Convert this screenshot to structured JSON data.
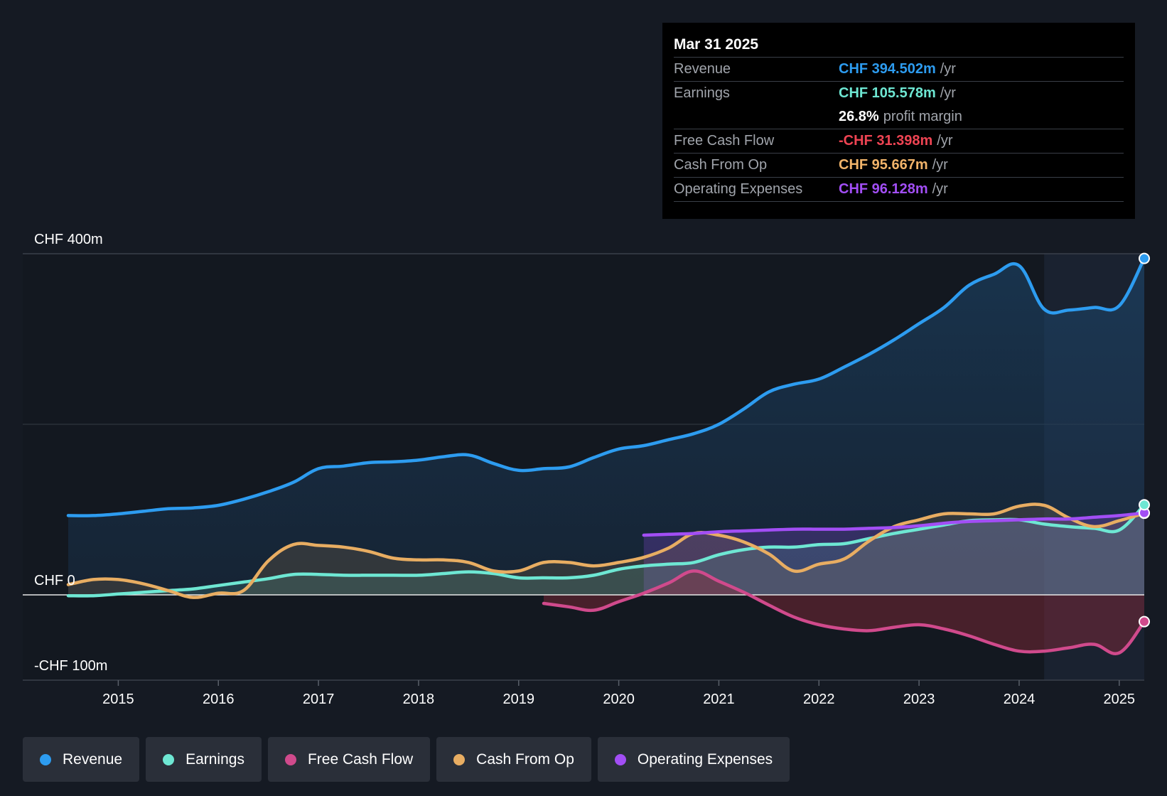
{
  "tooltip": {
    "date": "Mar 31 2025",
    "rows": [
      {
        "label": "Revenue",
        "value": "CHF 394.502m",
        "unit": "/yr",
        "color": "#2d9cf0"
      },
      {
        "label": "Earnings",
        "value": "CHF 105.578m",
        "unit": "/yr",
        "color": "#6ee7d3"
      },
      {
        "label": "",
        "value": "26.8%",
        "unit": "profit margin",
        "color": "#ffffff"
      },
      {
        "label": "Free Cash Flow",
        "value": "-CHF 31.398m",
        "unit": "/yr",
        "color": "#ef4453"
      },
      {
        "label": "Cash From Op",
        "value": "CHF 95.667m",
        "unit": "/yr",
        "color": "#f2b46a"
      },
      {
        "label": "Operating Expenses",
        "value": "CHF 96.128m",
        "unit": "/yr",
        "color": "#a24ef5"
      }
    ]
  },
  "legend": [
    {
      "label": "Revenue",
      "color": "#2d9cf0"
    },
    {
      "label": "Earnings",
      "color": "#6ee7d3"
    },
    {
      "label": "Free Cash Flow",
      "color": "#d04a8c"
    },
    {
      "label": "Cash From Op",
      "color": "#e8ad62"
    },
    {
      "label": "Operating Expenses",
      "color": "#a24ef5"
    }
  ],
  "chart_data": {
    "type": "line",
    "title": "",
    "xlabel": "",
    "ylabel": "",
    "ylim": [
      -100,
      400
    ],
    "xlim": [
      2014.5,
      2025.25
    ],
    "y_tick_labels": [
      {
        "value": 400,
        "label": "CHF 400m"
      },
      {
        "value": 0,
        "label": "CHF 0"
      },
      {
        "value": -100,
        "label": "-CHF 100m"
      }
    ],
    "x_ticks": [
      2015,
      2016,
      2017,
      2018,
      2019,
      2020,
      2021,
      2022,
      2023,
      2024,
      2025
    ],
    "x_tick_labels": [
      "2015",
      "2016",
      "2017",
      "2018",
      "2019",
      "2020",
      "2021",
      "2022",
      "2023",
      "2024",
      "2025"
    ],
    "highlight_start": 2024.25,
    "series": [
      {
        "name": "Revenue",
        "color": "#2d9cf0",
        "fill": true,
        "points": [
          [
            2014.5,
            93
          ],
          [
            2014.75,
            93
          ],
          [
            2015.0,
            95
          ],
          [
            2015.25,
            98
          ],
          [
            2015.5,
            101
          ],
          [
            2015.75,
            102
          ],
          [
            2016.0,
            105
          ],
          [
            2016.25,
            112
          ],
          [
            2016.5,
            121
          ],
          [
            2016.75,
            132
          ],
          [
            2017.0,
            148
          ],
          [
            2017.25,
            151
          ],
          [
            2017.5,
            155
          ],
          [
            2017.75,
            156
          ],
          [
            2018.0,
            158
          ],
          [
            2018.25,
            162
          ],
          [
            2018.5,
            164
          ],
          [
            2018.75,
            154
          ],
          [
            2019.0,
            146
          ],
          [
            2019.25,
            148
          ],
          [
            2019.5,
            150
          ],
          [
            2019.75,
            161
          ],
          [
            2020.0,
            171
          ],
          [
            2020.25,
            175
          ],
          [
            2020.5,
            182
          ],
          [
            2020.75,
            189
          ],
          [
            2021.0,
            200
          ],
          [
            2021.25,
            218
          ],
          [
            2021.5,
            238
          ],
          [
            2021.75,
            247
          ],
          [
            2022.0,
            253
          ],
          [
            2022.25,
            267
          ],
          [
            2022.5,
            282
          ],
          [
            2022.75,
            299
          ],
          [
            2023.0,
            318
          ],
          [
            2023.25,
            337
          ],
          [
            2023.5,
            363
          ],
          [
            2023.75,
            376
          ],
          [
            2024.0,
            386
          ],
          [
            2024.25,
            335
          ],
          [
            2024.5,
            334
          ],
          [
            2024.75,
            337
          ],
          [
            2025.0,
            339
          ],
          [
            2025.25,
            394.5
          ]
        ]
      },
      {
        "name": "Earnings",
        "color": "#6ee7d3",
        "fill": true,
        "points": [
          [
            2014.5,
            -1
          ],
          [
            2014.75,
            -1
          ],
          [
            2015.0,
            1
          ],
          [
            2015.25,
            3
          ],
          [
            2015.5,
            5
          ],
          [
            2015.75,
            7
          ],
          [
            2016.0,
            11
          ],
          [
            2016.25,
            15
          ],
          [
            2016.5,
            19
          ],
          [
            2016.75,
            24
          ],
          [
            2017.0,
            24
          ],
          [
            2017.25,
            23
          ],
          [
            2017.5,
            23
          ],
          [
            2017.75,
            23
          ],
          [
            2018.0,
            23
          ],
          [
            2018.25,
            25
          ],
          [
            2018.5,
            27
          ],
          [
            2018.75,
            25
          ],
          [
            2019.0,
            20
          ],
          [
            2019.25,
            20
          ],
          [
            2019.5,
            20
          ],
          [
            2019.75,
            23
          ],
          [
            2020.0,
            30
          ],
          [
            2020.25,
            34
          ],
          [
            2020.5,
            36
          ],
          [
            2020.75,
            38
          ],
          [
            2021.0,
            47
          ],
          [
            2021.25,
            53
          ],
          [
            2021.5,
            56
          ],
          [
            2021.75,
            56
          ],
          [
            2022.0,
            59
          ],
          [
            2022.25,
            60
          ],
          [
            2022.5,
            66
          ],
          [
            2022.75,
            72
          ],
          [
            2023.0,
            77
          ],
          [
            2023.25,
            82
          ],
          [
            2023.5,
            87
          ],
          [
            2023.75,
            88
          ],
          [
            2024.0,
            88
          ],
          [
            2024.25,
            83
          ],
          [
            2024.5,
            80
          ],
          [
            2024.75,
            78
          ],
          [
            2025.0,
            76
          ],
          [
            2025.25,
            105.6
          ]
        ]
      },
      {
        "name": "Free Cash Flow",
        "color": "#d04a8c",
        "fill": true,
        "start": 2019.25,
        "points": [
          [
            2019.25,
            -10
          ],
          [
            2019.5,
            -14
          ],
          [
            2019.75,
            -18
          ],
          [
            2020.0,
            -8
          ],
          [
            2020.25,
            2
          ],
          [
            2020.5,
            14
          ],
          [
            2020.75,
            28
          ],
          [
            2021.0,
            16
          ],
          [
            2021.25,
            3
          ],
          [
            2021.5,
            -12
          ],
          [
            2021.75,
            -26
          ],
          [
            2022.0,
            -35
          ],
          [
            2022.25,
            -40
          ],
          [
            2022.5,
            -42
          ],
          [
            2022.75,
            -38
          ],
          [
            2023.0,
            -35
          ],
          [
            2023.25,
            -40
          ],
          [
            2023.5,
            -48
          ],
          [
            2023.75,
            -58
          ],
          [
            2024.0,
            -66
          ],
          [
            2024.25,
            -66
          ],
          [
            2024.5,
            -62
          ],
          [
            2024.75,
            -58
          ],
          [
            2025.0,
            -68
          ],
          [
            2025.25,
            -31.4
          ]
        ]
      },
      {
        "name": "Cash From Op",
        "color": "#e8ad62",
        "fill": true,
        "points": [
          [
            2014.5,
            12
          ],
          [
            2014.75,
            18
          ],
          [
            2015.0,
            18
          ],
          [
            2015.25,
            13
          ],
          [
            2015.5,
            5
          ],
          [
            2015.75,
            -3
          ],
          [
            2016.0,
            2
          ],
          [
            2016.25,
            5
          ],
          [
            2016.5,
            40
          ],
          [
            2016.75,
            59
          ],
          [
            2017.0,
            58
          ],
          [
            2017.25,
            56
          ],
          [
            2017.5,
            51
          ],
          [
            2017.75,
            43
          ],
          [
            2018.0,
            41
          ],
          [
            2018.25,
            41
          ],
          [
            2018.5,
            38
          ],
          [
            2018.75,
            28
          ],
          [
            2019.0,
            28
          ],
          [
            2019.25,
            38
          ],
          [
            2019.5,
            38
          ],
          [
            2019.75,
            34
          ],
          [
            2020.0,
            38
          ],
          [
            2020.25,
            44
          ],
          [
            2020.5,
            55
          ],
          [
            2020.75,
            72
          ],
          [
            2021.0,
            70
          ],
          [
            2021.25,
            62
          ],
          [
            2021.5,
            48
          ],
          [
            2021.75,
            28
          ],
          [
            2022.0,
            36
          ],
          [
            2022.25,
            42
          ],
          [
            2022.5,
            63
          ],
          [
            2022.75,
            80
          ],
          [
            2023.0,
            88
          ],
          [
            2023.25,
            95
          ],
          [
            2023.5,
            95
          ],
          [
            2023.75,
            95
          ],
          [
            2024.0,
            104
          ],
          [
            2024.25,
            105
          ],
          [
            2024.5,
            90
          ],
          [
            2024.75,
            80
          ],
          [
            2025.0,
            87
          ],
          [
            2025.25,
            95.7
          ]
        ]
      },
      {
        "name": "Operating Expenses",
        "color": "#a24ef5",
        "fill": true,
        "start": 2020.25,
        "points": [
          [
            2020.25,
            70
          ],
          [
            2020.5,
            71
          ],
          [
            2020.75,
            72
          ],
          [
            2021.0,
            74
          ],
          [
            2021.25,
            75
          ],
          [
            2021.5,
            76
          ],
          [
            2021.75,
            77
          ],
          [
            2022.0,
            77
          ],
          [
            2022.25,
            77
          ],
          [
            2022.5,
            78
          ],
          [
            2022.75,
            79
          ],
          [
            2023.0,
            81
          ],
          [
            2023.25,
            84
          ],
          [
            2023.5,
            86
          ],
          [
            2023.75,
            87
          ],
          [
            2024.0,
            88
          ],
          [
            2024.25,
            89
          ],
          [
            2024.5,
            89
          ],
          [
            2024.75,
            91
          ],
          [
            2025.0,
            93
          ],
          [
            2025.25,
            96.1
          ]
        ]
      }
    ]
  }
}
